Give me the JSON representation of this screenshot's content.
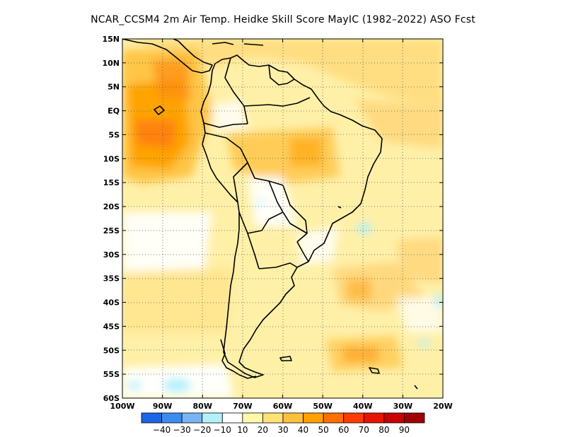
{
  "title": "NCAR_CCSM4  2m Air Temp. Heidke Skill Score MayIC (1982–2022) ASO Fcst",
  "map": {
    "lat_labels": [
      "15N",
      "10N",
      "5N",
      "EQ",
      "5S",
      "10S",
      "15S",
      "20S",
      "25S",
      "30S",
      "35S",
      "40S",
      "45S",
      "50S",
      "55S",
      "60S"
    ],
    "lon_labels": [
      "100W",
      "90W",
      "80W",
      "70W",
      "60W",
      "50W",
      "40W",
      "30W",
      "20W"
    ],
    "lon_range": [
      -100,
      -20
    ],
    "lat_range": [
      -60,
      15
    ],
    "grid": "dotted"
  },
  "colorbar": {
    "colors": [
      "#1e64e6",
      "#3c8cf0",
      "#78b4f5",
      "#b4f0fa",
      "#ffffff",
      "#fffaaa",
      "#ffe178",
      "#ffc03c",
      "#ffa000",
      "#ff6e00",
      "#ff3c00",
      "#e61400",
      "#c80000",
      "#a00000"
    ],
    "labels": [
      "-40",
      "-30",
      "-20",
      "-10",
      "10",
      "20",
      "30",
      "40",
      "50",
      "60",
      "70",
      "80",
      "90"
    ]
  }
}
